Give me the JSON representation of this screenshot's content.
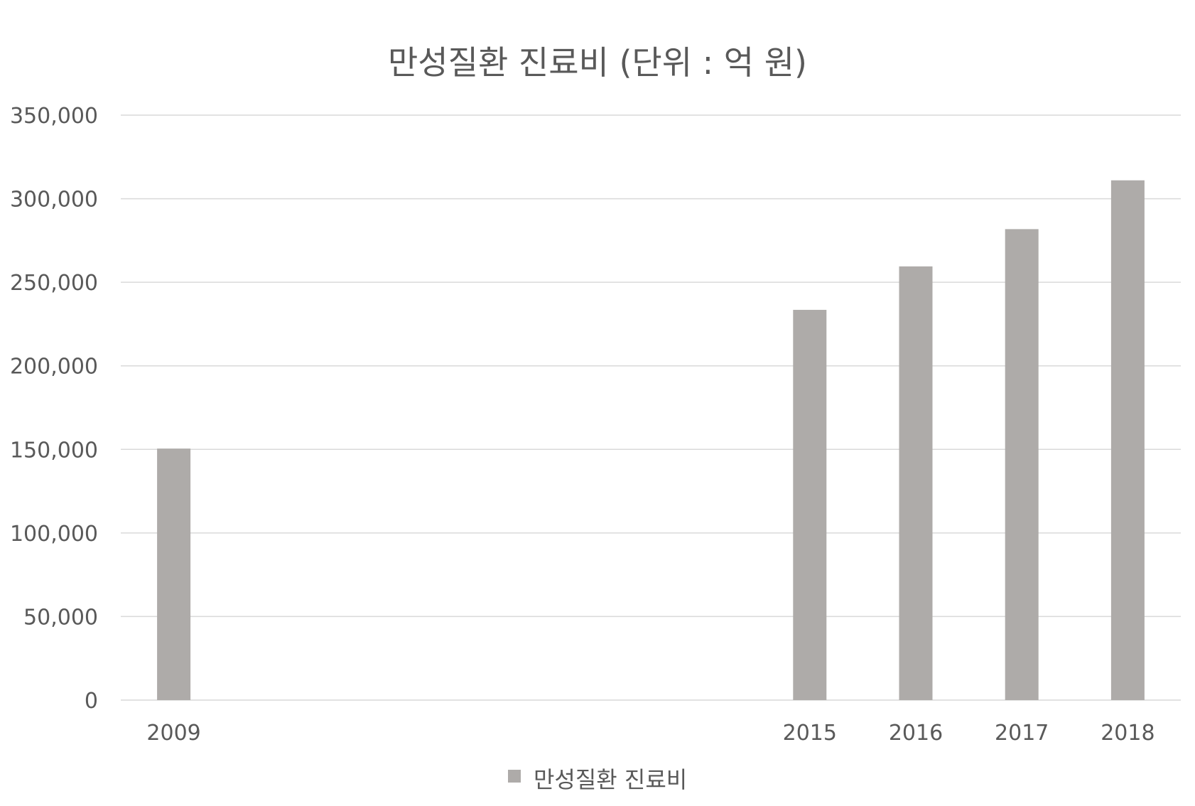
{
  "chart_data": {
    "type": "bar",
    "title": "만성질환 진료비 (단위 : 억 원)",
    "categories": [
      "2009",
      "2015",
      "2016",
      "2017",
      "2018"
    ],
    "x": [
      2009,
      2015,
      2016,
      2017,
      2018
    ],
    "series": [
      {
        "name": "만성질환 진료비",
        "values": [
          150500,
          233500,
          259500,
          281800,
          311000
        ]
      }
    ],
    "ylim": [
      0,
      350000
    ],
    "yticks": [
      0,
      50000,
      100000,
      150000,
      200000,
      250000,
      300000,
      350000
    ],
    "ytick_labels": [
      "0",
      "50,000",
      "100,000",
      "150,000",
      "200,000",
      "250,000",
      "300,000",
      "350,000"
    ],
    "xlim": [
      2008.5,
      2018.5
    ],
    "grid": true,
    "legend_position": "bottom",
    "bar_color": "#aeaba9",
    "grid_color": "#d9d9d9"
  }
}
